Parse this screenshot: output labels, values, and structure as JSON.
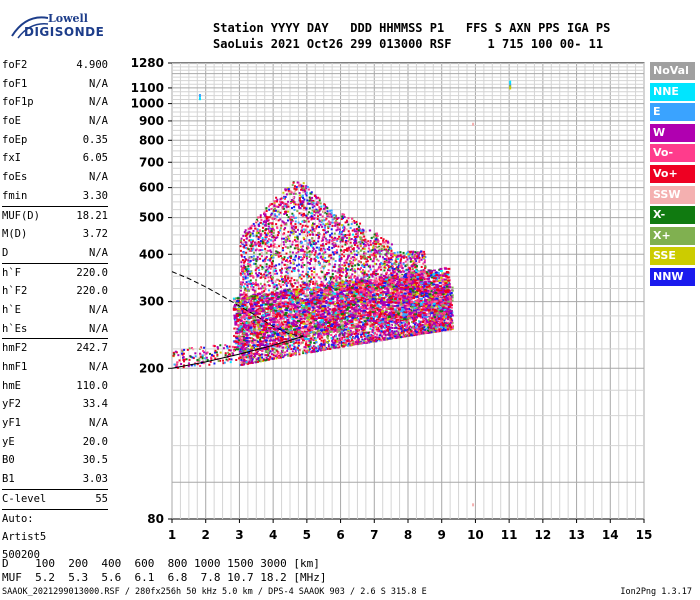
{
  "logo": {
    "top": "Lowell",
    "main": "DIGISONDE"
  },
  "header": {
    "line1": "Station YYYY DAY   DDD HHMMSS P1   FFS S AXN PPS IGA PS",
    "line2": "SaoLuis 2021 Oct26 299 013000 RSF     1 715 100 00- 11"
  },
  "params": [
    {
      "label": "foF2",
      "value": "4.900"
    },
    {
      "label": "foF1",
      "value": "N/A"
    },
    {
      "label": "foF1p",
      "value": "N/A"
    },
    {
      "label": "foE",
      "value": "N/A"
    },
    {
      "label": "foEp",
      "value": "0.35"
    },
    {
      "label": "fxI",
      "value": "6.05"
    },
    {
      "label": "foEs",
      "value": "N/A"
    },
    {
      "label": "fmin",
      "value": "3.30"
    },
    {
      "sep": true
    },
    {
      "label": "MUF(D)",
      "value": "18.21"
    },
    {
      "label": "M(D)",
      "value": "3.72"
    },
    {
      "label": "D",
      "value": "N/A"
    },
    {
      "sep": true
    },
    {
      "label": "h`F",
      "value": "220.0"
    },
    {
      "label": "h`F2",
      "value": "220.0"
    },
    {
      "label": "h`E",
      "value": "N/A"
    },
    {
      "label": "h`Es",
      "value": "N/A"
    },
    {
      "sep": true
    },
    {
      "label": "hmF2",
      "value": "242.7"
    },
    {
      "label": "hmF1",
      "value": "N/A"
    },
    {
      "label": "hmE",
      "value": "110.0"
    },
    {
      "label": "yF2",
      "value": "33.4"
    },
    {
      "label": "yF1",
      "value": "N/A"
    },
    {
      "label": "yE",
      "value": "20.0"
    },
    {
      "label": "B0",
      "value": "30.5"
    },
    {
      "label": "B1",
      "value": "3.03"
    },
    {
      "sep": true
    },
    {
      "label": "C-level",
      "value": "55"
    },
    {
      "sep": true
    }
  ],
  "auto": {
    "line1": "Auto:",
    "line2": "Artist5",
    "line3": "500200"
  },
  "legend": [
    {
      "label": "NoVal",
      "color": "#a0a0a0"
    },
    {
      "label": "NNE",
      "color": "#00e5ff"
    },
    {
      "label": "E",
      "color": "#3aa3ff"
    },
    {
      "label": "W",
      "color": "#b000b0"
    },
    {
      "label": "Vo-",
      "color": "#ff3c8c"
    },
    {
      "label": "Vo+",
      "color": "#ee0022"
    },
    {
      "label": "SSW",
      "color": "#f4b0b0"
    },
    {
      "label": "X-",
      "color": "#107a10"
    },
    {
      "label": "X+",
      "color": "#80b050"
    },
    {
      "label": "SSE",
      "color": "#cccc00"
    },
    {
      "label": "NNW",
      "color": "#1a1aee"
    }
  ],
  "chart_data": {
    "type": "scatter",
    "xlim": [
      1,
      15
    ],
    "x_ticks": [
      "1",
      "2",
      "3",
      "4",
      "5",
      "6",
      "7",
      "8",
      "9",
      "10",
      "11",
      "12",
      "13",
      "14",
      "15"
    ],
    "y_scale": "log",
    "ylim": [
      80,
      1280
    ],
    "y_ticks": [
      "80",
      "200",
      "300",
      "400",
      "500",
      "600",
      "700",
      "800",
      "900",
      "1000",
      "1100",
      "1280"
    ],
    "grid": true,
    "trace_region": {
      "frequency_range_mhz": [
        1.0,
        9.3
      ],
      "height_range_km": [
        200,
        800
      ],
      "dense_frequency_range_mhz": [
        3.0,
        9.3
      ],
      "dense_height_range_km": [
        210,
        460
      ]
    },
    "isolated_points": [
      {
        "x": 1.8,
        "y": 1060,
        "color": "#3aa3ff"
      },
      {
        "x": 1.8,
        "y": 1040,
        "color": "#00e5ff"
      },
      {
        "x": 11.0,
        "y": 1150,
        "color": "#00e5ff"
      },
      {
        "x": 11.0,
        "y": 1130,
        "color": "#3aa3ff"
      },
      {
        "x": 11.0,
        "y": 1120,
        "color": "#80b050"
      },
      {
        "x": 11.0,
        "y": 1110,
        "color": "#cccc00"
      },
      {
        "x": 9.9,
        "y": 890,
        "color": "#f4b0b0"
      },
      {
        "x": 9.9,
        "y": 88,
        "color": "#f4b0b0"
      }
    ],
    "profile_curve": {
      "x": [
        1.0,
        1.5,
        2.0,
        2.5,
        3.0,
        3.5,
        4.0,
        4.5,
        4.9
      ],
      "y": [
        360,
        345,
        328,
        310,
        292,
        275,
        258,
        246,
        243
      ]
    },
    "profile_curve_lower": {
      "x": [
        1.0,
        2.0,
        3.0,
        4.0,
        4.9
      ],
      "y": [
        200,
        208,
        218,
        230,
        243
      ]
    }
  },
  "footer": {
    "line1": "D    100  200  400  600  800 1000 1500 3000 [km]",
    "line2": "MUF  5.2  5.3  5.6  6.1  6.8  7.8 10.7 18.2 [MHz]"
  },
  "bottom_line": "SAAOK_2021299013000.RSF / 280fx256h 50 kHz 5.0 km / DPS-4 SAAOK 903 / 2.6 S 315.8 E",
  "version": "Ion2Png 1.3.17"
}
